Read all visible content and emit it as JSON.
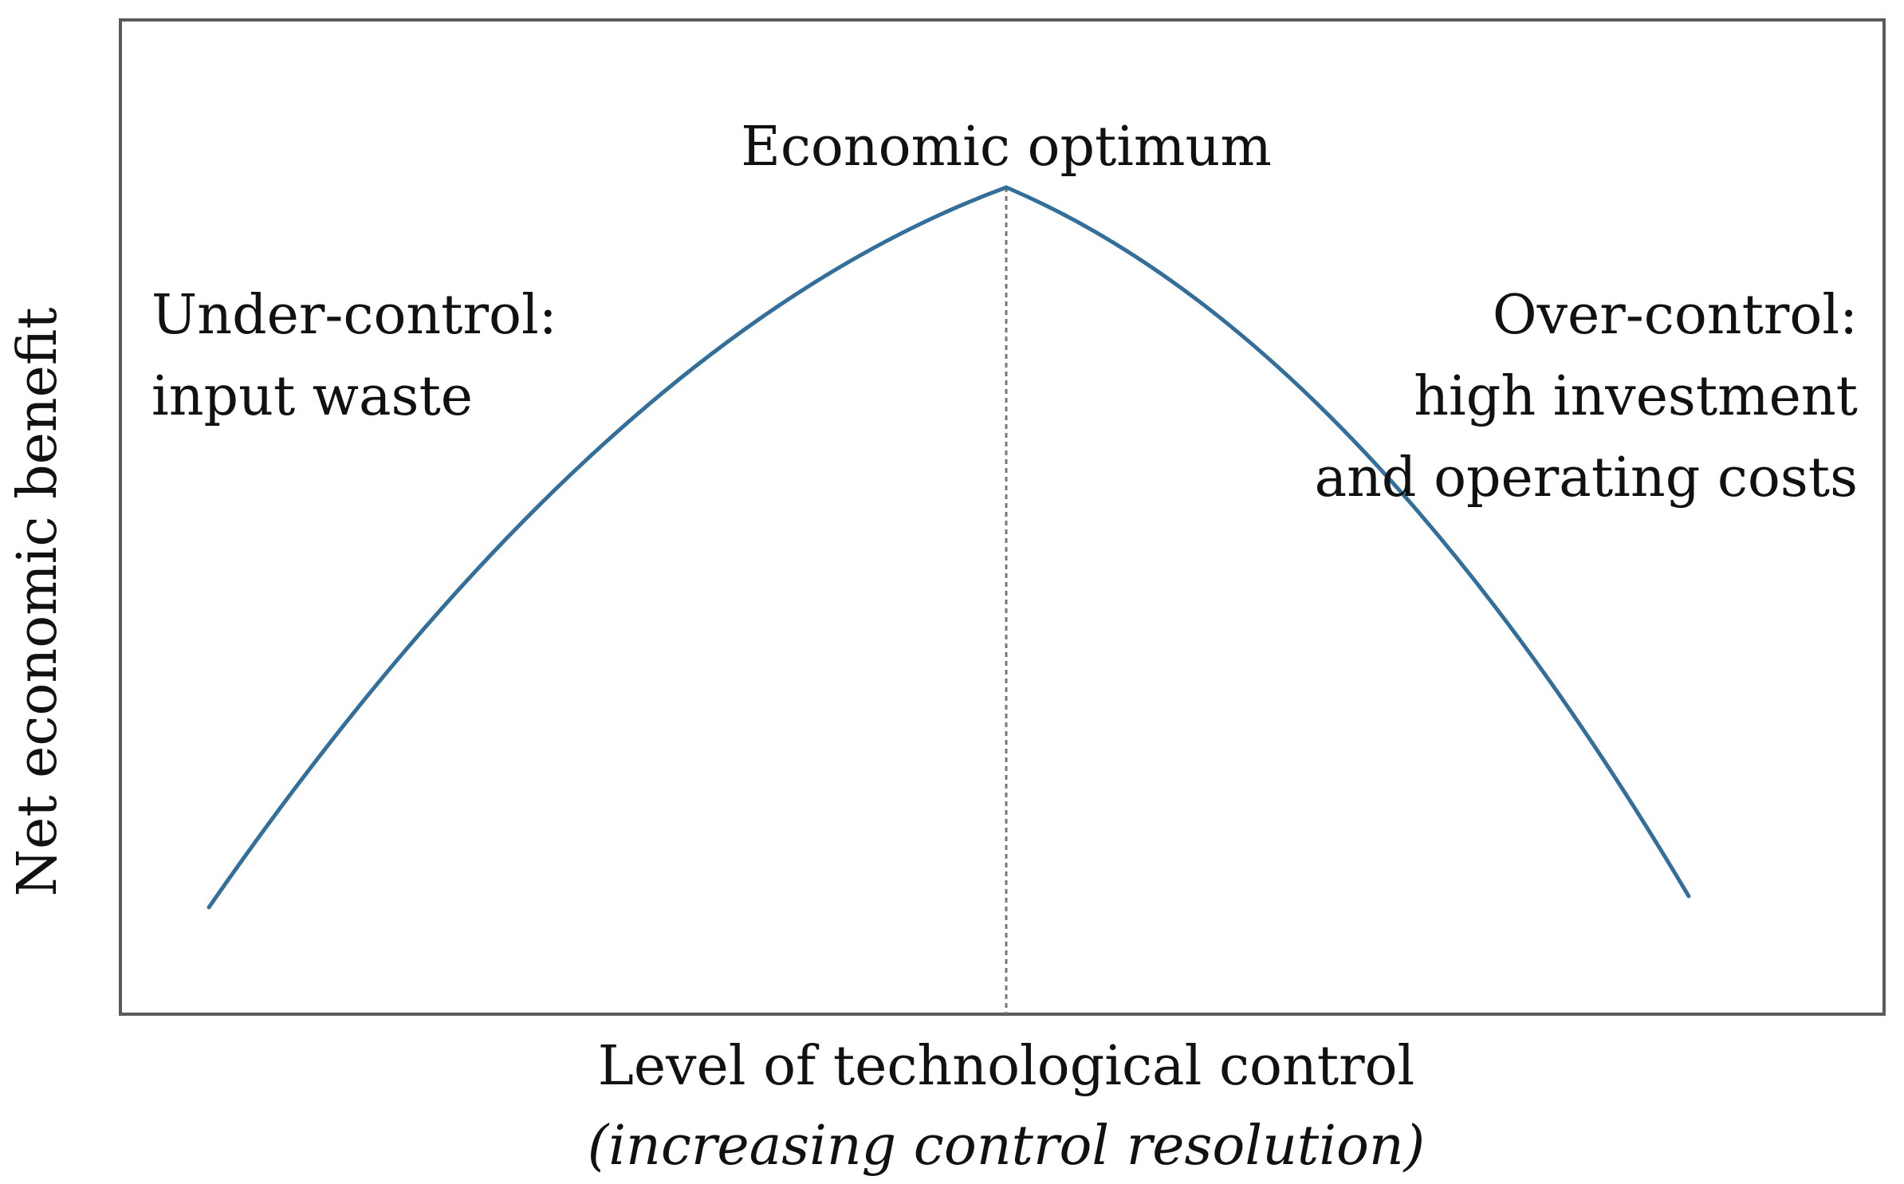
{
  "diagram": {
    "peak_label": "Economic optimum",
    "left_label": [
      "Under-control:",
      "input waste"
    ],
    "right_label": [
      "Over-control:",
      "high investment",
      "and operating costs"
    ],
    "y_axis_label": "Net economic benefit",
    "x_axis_label": "Level of technological control",
    "x_axis_sublabel": "(increasing control resolution)"
  },
  "colors": {
    "curve": "#336f9a",
    "frame": "#5a5a5a",
    "optimum_line": "#777777",
    "text": "#111111"
  }
}
